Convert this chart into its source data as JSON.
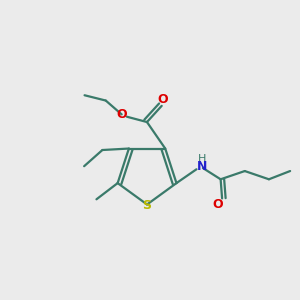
{
  "background_color": "#ebebeb",
  "bond_color": "#3a7a6a",
  "sulfur_color": "#b8b800",
  "oxygen_color": "#dd0000",
  "nitrogen_color": "#2222cc",
  "h_color": "#3a7a6a",
  "line_width": 1.6,
  "figsize": [
    3.0,
    3.0
  ],
  "dpi": 100,
  "xlim": [
    0,
    10
  ],
  "ylim": [
    0,
    10
  ]
}
